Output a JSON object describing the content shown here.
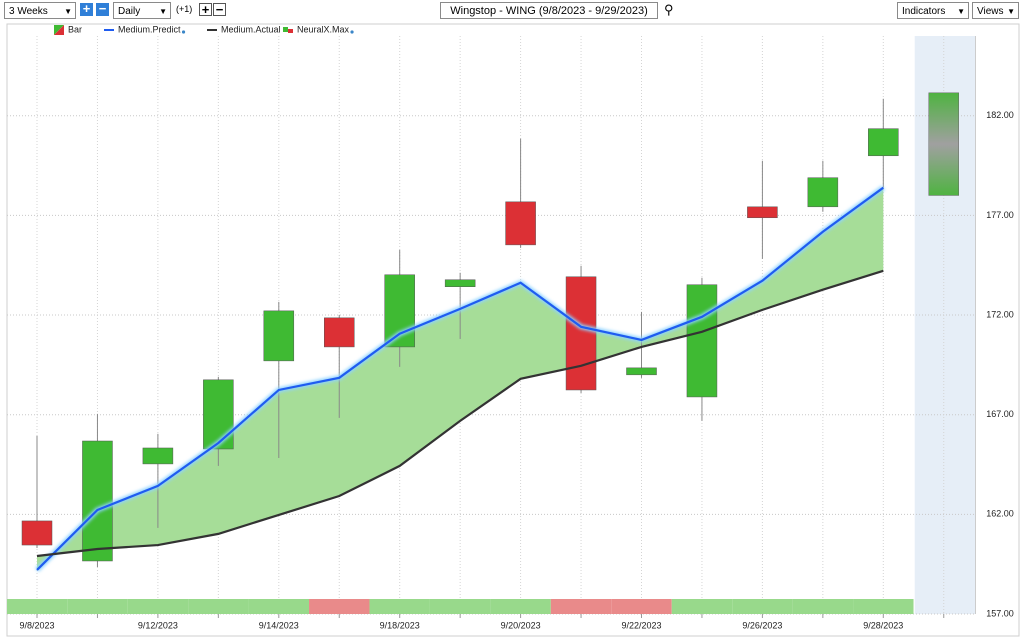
{
  "toolbar": {
    "period": "3 Weeks",
    "interval": "Daily",
    "offset": "(+1)",
    "indicators": "Indicators",
    "views": "Views"
  },
  "chart_data": {
    "type": "candlestick",
    "title": "Wingstop - WING (9/8/2023 - 9/29/2023)",
    "candle_name": "Bar",
    "up_color": "#3fba33",
    "down_color": "#dc3035",
    "categories": [
      "9/8/2023",
      null,
      "9/12/2023",
      null,
      "9/14/2023",
      null,
      "9/18/2023",
      null,
      "9/20/2023",
      null,
      "9/22/2023",
      null,
      "9/26/2023",
      null,
      "9/28/2023",
      null
    ],
    "open": [
      161.67,
      159.66,
      164.53,
      165.28,
      169.7,
      171.86,
      170.4,
      173.42,
      177.68,
      173.92,
      169.0,
      167.89,
      177.43,
      177.43,
      179.99,
      null
    ],
    "high": [
      165.94,
      167.04,
      166.04,
      168.9,
      172.66,
      172.01,
      175.27,
      174.12,
      180.85,
      174.47,
      172.16,
      173.87,
      179.74,
      179.74,
      182.85,
      null
    ],
    "low": [
      160.31,
      159.36,
      161.32,
      164.43,
      164.83,
      166.84,
      169.4,
      170.8,
      175.37,
      168.09,
      168.85,
      166.69,
      174.82,
      177.18,
      178.39,
      null
    ],
    "close": [
      160.46,
      165.68,
      165.33,
      168.75,
      172.21,
      170.4,
      174.02,
      173.77,
      175.52,
      168.24,
      169.35,
      173.52,
      176.88,
      178.89,
      181.35,
      null
    ],
    "series": [
      {
        "name": "Medium.Predict",
        "color": "#1f5cf0",
        "values": [
          159.21,
          162.22,
          163.43,
          165.58,
          168.24,
          168.85,
          171.06,
          172.31,
          173.62,
          171.41,
          170.75,
          171.91,
          173.72,
          176.18,
          178.39,
          null
        ]
      },
      {
        "name": "Medium.Actual",
        "color": "#333333",
        "values": [
          159.91,
          160.26,
          160.46,
          161.02,
          161.97,
          162.92,
          164.43,
          166.69,
          168.8,
          169.45,
          170.4,
          171.16,
          172.26,
          173.27,
          174.22,
          null
        ]
      }
    ],
    "fill_color": "#a6dd98",
    "forecast": {
      "name": "NeuralX.Max",
      "high": 183.15,
      "low": 178.0
    },
    "signal_colors": [
      "#98d98b",
      "#98d98b",
      "#98d98b",
      "#98d98b",
      "#98d98b",
      "#e98a8a",
      "#98d98b",
      "#98d98b",
      "#98d98b",
      "#e98a8a",
      "#e98a8a",
      "#98d98b",
      "#98d98b",
      "#98d98b",
      "#98d98b",
      null
    ],
    "ylim": [
      157,
      186
    ],
    "yticks": [
      {
        "value": 157,
        "label": "157.00"
      },
      {
        "value": 162,
        "label": "162.00"
      },
      {
        "value": 167,
        "label": "167.00"
      },
      {
        "value": 172,
        "label": "172.00"
      },
      {
        "value": 177,
        "label": "177.00"
      },
      {
        "value": 182,
        "label": "182.00"
      }
    ],
    "grid": true
  }
}
